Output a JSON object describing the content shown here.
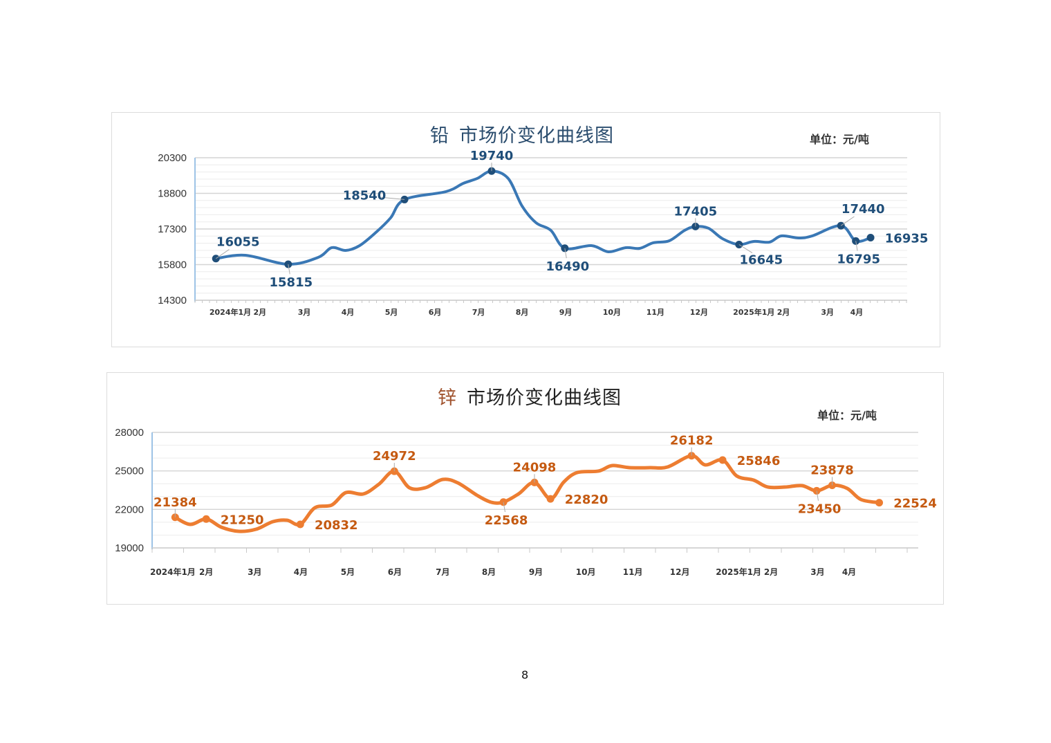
{
  "page_number": "8",
  "chart_data": [
    {
      "type": "line",
      "metal": "铅",
      "title_rest": "市场价变化曲线图",
      "unit": "单位：元/吨",
      "color": "#3a78b5",
      "metal_color": "#2b4d6e",
      "label_color": "#1f4e79",
      "ylim": [
        14300,
        20300
      ],
      "yticks": [
        14300,
        15800,
        17300,
        18800,
        20300
      ],
      "xlim": [
        0,
        16.35
      ],
      "xunit": "months since 2024-01",
      "xticks": [
        {
          "x": 0.81,
          "label": "2024年1月"
        },
        {
          "x": 1.49,
          "label": "2月"
        },
        {
          "x": 2.51,
          "label": "3月"
        },
        {
          "x": 3.51,
          "label": "4月"
        },
        {
          "x": 4.51,
          "label": "5月"
        },
        {
          "x": 5.51,
          "label": "6月"
        },
        {
          "x": 6.51,
          "label": "7月"
        },
        {
          "x": 7.51,
          "label": "8月"
        },
        {
          "x": 8.51,
          "label": "9月"
        },
        {
          "x": 9.57,
          "label": "10月"
        },
        {
          "x": 10.57,
          "label": "11月"
        },
        {
          "x": 11.57,
          "label": "12月"
        },
        {
          "x": 12.83,
          "label": "2025年1月"
        },
        {
          "x": 13.51,
          "label": "2月"
        },
        {
          "x": 14.52,
          "label": "3月"
        },
        {
          "x": 15.19,
          "label": "4月"
        }
      ],
      "series": [
        [
          0.48,
          16055
        ],
        [
          1.16,
          16193
        ],
        [
          2.14,
          15815
        ],
        [
          2.83,
          16106
        ],
        [
          3.14,
          16514
        ],
        [
          3.46,
          16397
        ],
        [
          3.78,
          16601
        ],
        [
          4.17,
          17184
        ],
        [
          4.49,
          17766
        ],
        [
          4.81,
          18540
        ],
        [
          5.76,
          18873
        ],
        [
          6.16,
          19223
        ],
        [
          6.48,
          19427
        ],
        [
          6.81,
          19740
        ],
        [
          7.19,
          19427
        ],
        [
          7.51,
          18262
        ],
        [
          7.83,
          17563
        ],
        [
          8.17,
          17242
        ],
        [
          8.49,
          16490
        ],
        [
          9.1,
          16601
        ],
        [
          9.49,
          16339
        ],
        [
          9.89,
          16514
        ],
        [
          10.21,
          16485
        ],
        [
          10.52,
          16718
        ],
        [
          10.89,
          16805
        ],
        [
          11.24,
          17242
        ],
        [
          11.49,
          17405
        ],
        [
          11.79,
          17330
        ],
        [
          12.11,
          16893
        ],
        [
          12.49,
          16645
        ],
        [
          12.83,
          16776
        ],
        [
          13.19,
          16747
        ],
        [
          13.46,
          17009
        ],
        [
          13.86,
          16922
        ],
        [
          14.17,
          17009
        ],
        [
          14.83,
          17440
        ],
        [
          15.17,
          16795
        ],
        [
          15.51,
          16935
        ]
      ],
      "labeled_points": [
        {
          "x": 0.48,
          "value": 16055,
          "text": "16055",
          "pos": "above-right"
        },
        {
          "x": 2.14,
          "value": 15815,
          "text": "15815",
          "pos": "below"
        },
        {
          "x": 4.81,
          "value": 18540,
          "text": "18540",
          "pos": "left"
        },
        {
          "x": 6.81,
          "value": 19740,
          "text": "19740",
          "pos": "above"
        },
        {
          "x": 8.49,
          "value": 16490,
          "text": "16490",
          "pos": "below"
        },
        {
          "x": 11.49,
          "value": 17405,
          "text": "17405",
          "pos": "above"
        },
        {
          "x": 12.49,
          "value": 16645,
          "text": "16645",
          "pos": "below-right"
        },
        {
          "x": 14.83,
          "value": 17440,
          "text": "17440",
          "pos": "above-right"
        },
        {
          "x": 15.17,
          "value": 16795,
          "text": "16795",
          "pos": "below"
        },
        {
          "x": 15.51,
          "value": 16935,
          "text": "16935",
          "pos": "right"
        }
      ]
    },
    {
      "type": "line",
      "metal": "锌",
      "title_rest": "市场价变化曲线图",
      "unit": "单位：元/吨",
      "color": "#ed7d31",
      "metal_color": "#a0522d",
      "label_color": "#c55a11",
      "ylim": [
        19000,
        28000
      ],
      "yticks": [
        19000,
        22000,
        25000,
        28000
      ],
      "xlim": [
        0,
        16.29
      ],
      "xunit": "months since 2024-01",
      "xticks": [
        {
          "x": 0.44,
          "label": "2024年1月"
        },
        {
          "x": 1.15,
          "label": "2月"
        },
        {
          "x": 2.18,
          "label": "3月"
        },
        {
          "x": 3.16,
          "label": "4月"
        },
        {
          "x": 4.16,
          "label": "5月"
        },
        {
          "x": 5.16,
          "label": "6月"
        },
        {
          "x": 6.18,
          "label": "7月"
        },
        {
          "x": 7.16,
          "label": "8月"
        },
        {
          "x": 8.16,
          "label": "9月"
        },
        {
          "x": 9.22,
          "label": "10月"
        },
        {
          "x": 10.22,
          "label": "11月"
        },
        {
          "x": 11.22,
          "label": "12月"
        },
        {
          "x": 12.47,
          "label": "2025年1月"
        },
        {
          "x": 13.16,
          "label": "2月"
        },
        {
          "x": 14.15,
          "label": "3月"
        },
        {
          "x": 14.82,
          "label": "4月"
        }
      ],
      "series": [
        [
          0.49,
          21384
        ],
        [
          0.81,
          20833
        ],
        [
          1.15,
          21250
        ],
        [
          1.47,
          20617
        ],
        [
          1.84,
          20294
        ],
        [
          2.21,
          20455
        ],
        [
          2.57,
          21048
        ],
        [
          2.87,
          21156
        ],
        [
          3.15,
          20832
        ],
        [
          3.46,
          22126
        ],
        [
          3.82,
          22342
        ],
        [
          4.12,
          23312
        ],
        [
          4.49,
          23204
        ],
        [
          4.82,
          23959
        ],
        [
          5.15,
          24972
        ],
        [
          5.47,
          23689
        ],
        [
          5.81,
          23689
        ],
        [
          6.18,
          24336
        ],
        [
          6.5,
          24067
        ],
        [
          6.91,
          23096
        ],
        [
          7.21,
          22557
        ],
        [
          7.47,
          22568
        ],
        [
          7.79,
          23204
        ],
        [
          8.13,
          24098
        ],
        [
          8.47,
          22820
        ],
        [
          8.75,
          24121
        ],
        [
          9.04,
          24875
        ],
        [
          9.49,
          24983
        ],
        [
          9.78,
          25414
        ],
        [
          10.15,
          25252
        ],
        [
          10.59,
          25252
        ],
        [
          10.96,
          25306
        ],
        [
          11.47,
          26182
        ],
        [
          11.76,
          25468
        ],
        [
          12.13,
          25846
        ],
        [
          12.43,
          24606
        ],
        [
          12.79,
          24282
        ],
        [
          13.09,
          23743
        ],
        [
          13.46,
          23743
        ],
        [
          13.82,
          23851
        ],
        [
          14.13,
          23450
        ],
        [
          14.46,
          23878
        ],
        [
          14.78,
          23635
        ],
        [
          15.07,
          22773
        ],
        [
          15.46,
          22524
        ]
      ],
      "labeled_points": [
        {
          "x": 0.49,
          "value": 21384,
          "text": "21384",
          "pos": "above"
        },
        {
          "x": 1.15,
          "value": 21250,
          "text": "21250",
          "pos": "right"
        },
        {
          "x": 3.15,
          "value": 20832,
          "text": "20832",
          "pos": "right"
        },
        {
          "x": 5.15,
          "value": 24972,
          "text": "24972",
          "pos": "above"
        },
        {
          "x": 7.47,
          "value": 22568,
          "text": "22568",
          "pos": "below"
        },
        {
          "x": 8.13,
          "value": 24098,
          "text": "24098",
          "pos": "above"
        },
        {
          "x": 8.47,
          "value": 22820,
          "text": "22820",
          "pos": "right"
        },
        {
          "x": 11.47,
          "value": 26182,
          "text": "26182",
          "pos": "above"
        },
        {
          "x": 12.13,
          "value": 25846,
          "text": "25846",
          "pos": "right"
        },
        {
          "x": 14.13,
          "value": 23450,
          "text": "23450",
          "pos": "below"
        },
        {
          "x": 14.46,
          "value": 23878,
          "text": "23878",
          "pos": "above"
        },
        {
          "x": 15.46,
          "value": 22524,
          "text": "22524",
          "pos": "right"
        }
      ]
    }
  ]
}
